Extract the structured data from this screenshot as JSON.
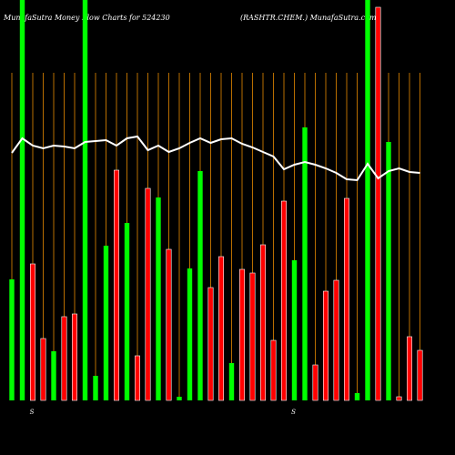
{
  "chart_data": {
    "type": "bar",
    "title": "MunafaSutra  Money Flow  Charts for 524230",
    "subtitle": "(RASHTR.CHEM.) MunafaSutra.com",
    "categories": [
      null,
      null,
      "S",
      null,
      null,
      null,
      null,
      null,
      null,
      null,
      null,
      null,
      null,
      null,
      null,
      null,
      null,
      null,
      null,
      null,
      null,
      null,
      null,
      null,
      null,
      null,
      null,
      "S",
      null,
      null,
      null,
      null,
      null,
      null,
      null,
      null,
      null,
      null,
      null,
      null
    ],
    "values": [
      133,
      440,
      150,
      68,
      54,
      92,
      95,
      440,
      27,
      170,
      253,
      195,
      49,
      233,
      223,
      166,
      4,
      145,
      252,
      124,
      158,
      41,
      144,
      140,
      171,
      66,
      219,
      154,
      300,
      39,
      120,
      132,
      222,
      8,
      440,
      432,
      284,
      4,
      70,
      55
    ],
    "colors": [
      "#00ff00",
      "#00ff00",
      "#ff0000",
      "#ff0000",
      "#00ff00",
      "#ff0000",
      "#ff0000",
      "#00ff00",
      "#00ff00",
      "#00ff00",
      "#ff0000",
      "#00ff00",
      "#ff0000",
      "#ff0000",
      "#00ff00",
      "#ff0000",
      "#00ff00",
      "#00ff00",
      "#00ff00",
      "#ff0000",
      "#ff0000",
      "#00ff00",
      "#ff0000",
      "#ff0000",
      "#ff0000",
      "#ff0000",
      "#ff0000",
      "#00ff00",
      "#00ff00",
      "#ff0000",
      "#ff0000",
      "#ff0000",
      "#ff0000",
      "#00ff00",
      "#00ff00",
      "#ff0000",
      "#00ff00",
      "#ff0000",
      "#ff0000",
      "#ff0000"
    ],
    "line": {
      "color": "#ffffff",
      "values": [
        272,
        288,
        280,
        277,
        280,
        279,
        277,
        284,
        285,
        286,
        280,
        288,
        290,
        275,
        280,
        273,
        277,
        283,
        288,
        283,
        287,
        288,
        282,
        278,
        273,
        268,
        254,
        259,
        262,
        259,
        255,
        250,
        243,
        242,
        260,
        244,
        252,
        255,
        251,
        250
      ]
    },
    "ylim": [
      0,
      440
    ],
    "gridline_color": "#b86e00"
  }
}
